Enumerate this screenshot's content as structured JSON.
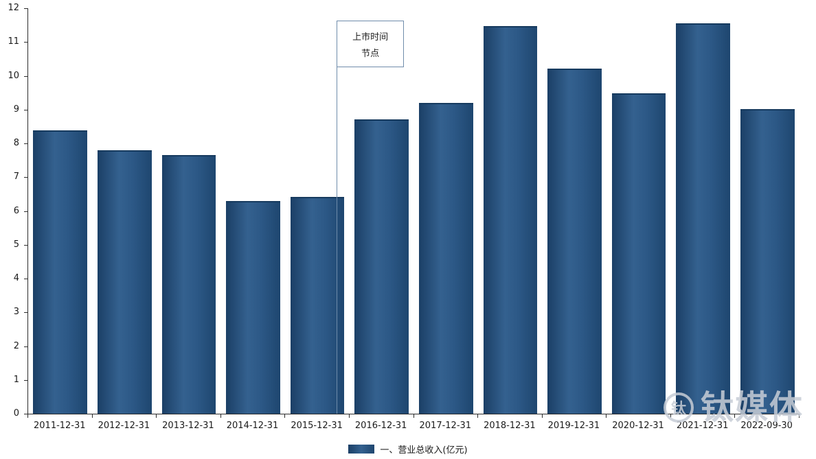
{
  "chart_data": {
    "type": "bar",
    "title": "",
    "categories": [
      "2011-12-31",
      "2012-12-31",
      "2013-12-31",
      "2014-12-31",
      "2015-12-31",
      "2016-12-31",
      "2017-12-31",
      "2018-12-31",
      "2019-12-31",
      "2020-12-31",
      "2021-12-31",
      "2022-09-30"
    ],
    "series": [
      {
        "name": "一、营业总收入(亿元)",
        "values": [
          8.38,
          7.8,
          7.65,
          6.3,
          6.42,
          8.72,
          9.2,
          11.47,
          10.22,
          9.48,
          11.55,
          9.02
        ]
      }
    ],
    "xlabel": "",
    "ylabel": "",
    "ylim": [
      0,
      12
    ],
    "ytick_step": 1,
    "grid": false,
    "legend_position": "bottom",
    "bar_color": "#2c5886",
    "annotation": {
      "text": [
        "上市时间",
        "节点"
      ],
      "line_fraction": 0.4
    }
  },
  "legend": {
    "swatch_color": "#2c5886"
  },
  "watermark": {
    "logo_glyph": "钛",
    "text": "钛媒体"
  }
}
